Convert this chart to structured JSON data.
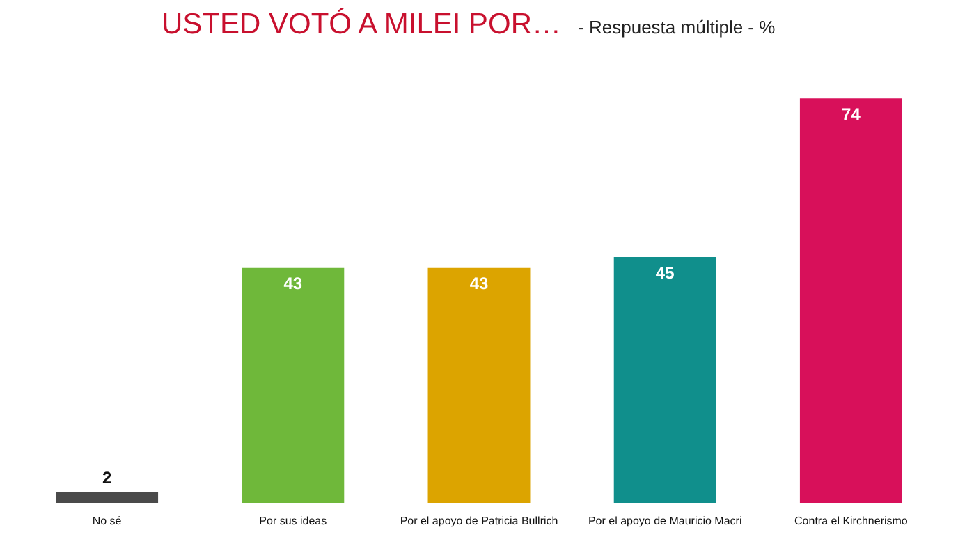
{
  "chart_data": {
    "type": "bar",
    "title": "USTED VOTÓ A MILEI POR…",
    "subtitle": "- Respuesta múltiple - %",
    "categories": [
      "No sé",
      "Por sus ideas",
      "Por el apoyo de Patricia Bullrich",
      "Por el apoyo de Mauricio Macri",
      "Contra el Kirchnerismo"
    ],
    "values": [
      2,
      43,
      43,
      45,
      74
    ],
    "colors": [
      "#4a4a4a",
      "#6fb83a",
      "#dca400",
      "#108f8c",
      "#d8105a"
    ],
    "data_labels": true,
    "grid": false,
    "legend": false
  }
}
